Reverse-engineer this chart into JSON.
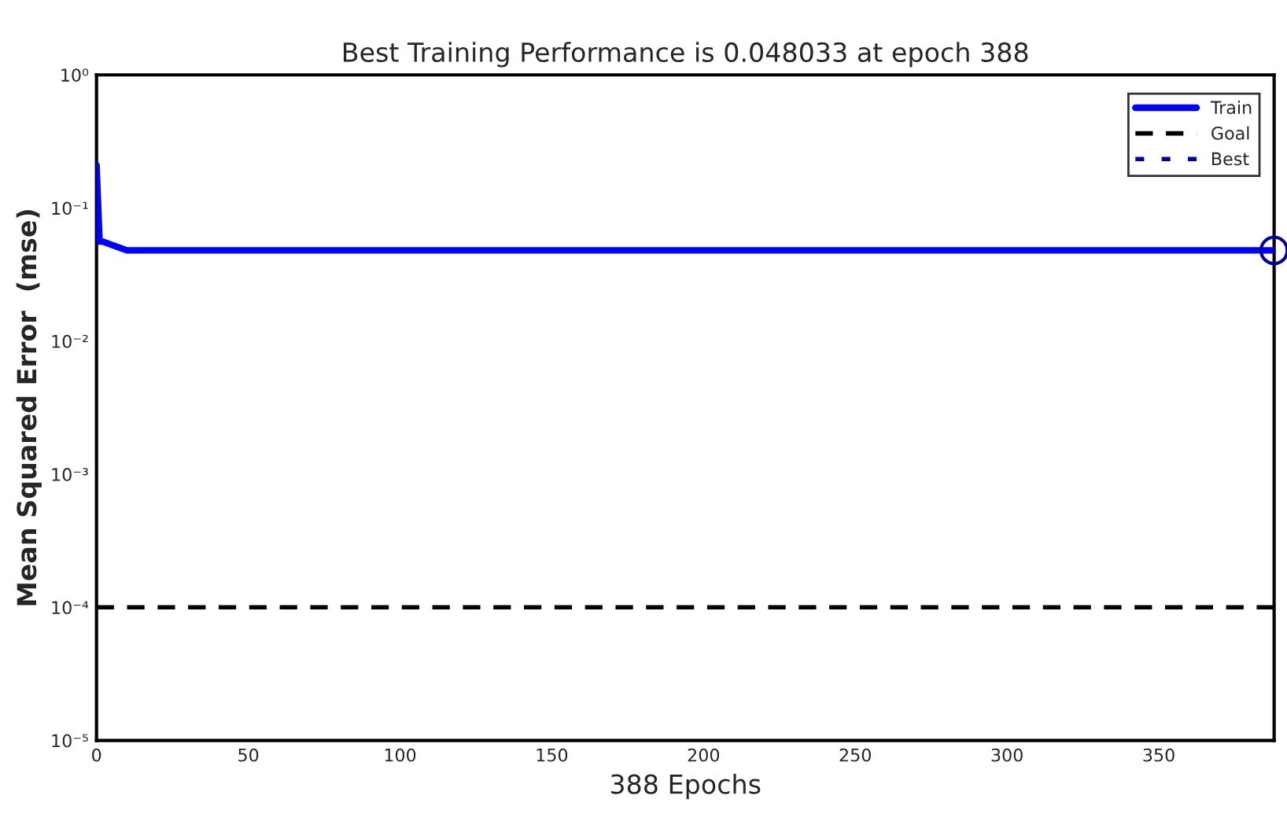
{
  "chart_data": {
    "type": "line",
    "title": "Best Training Performance is 0.048033 at epoch 388",
    "xlabel": "388 Epochs",
    "ylabel": "Mean Squared Error  (mse)",
    "series": [
      {
        "name": "Train",
        "color": "#0000ff",
        "x": [
          0,
          1,
          2,
          10,
          388
        ],
        "values": [
          0.21,
          0.056,
          0.056,
          0.048033,
          0.048033
        ],
        "line_style": "solid"
      },
      {
        "name": "Goal",
        "color": "#000000",
        "x": [
          0,
          388
        ],
        "values": [
          0.0001,
          0.0001
        ],
        "line_style": "dashed"
      },
      {
        "name": "Best",
        "type": "scatter",
        "color": "#00009c",
        "x": [
          388
        ],
        "values": [
          0.048033
        ],
        "marker": "circle",
        "line_style": "dotted"
      }
    ],
    "log": "y",
    "xlim": [
      0,
      388
    ],
    "ylim": [
      1e-05,
      1
    ],
    "xticks": [
      0,
      50,
      100,
      150,
      200,
      250,
      300,
      350
    ],
    "yticks": [
      {
        "value": 1e-05,
        "label": "10⁻⁵"
      },
      {
        "value": 0.0001,
        "label": "10⁻⁴"
      },
      {
        "value": 0.001,
        "label": "10⁻³"
      },
      {
        "value": 0.01,
        "label": "10⁻²"
      },
      {
        "value": 0.1,
        "label": "10⁻¹"
      },
      {
        "value": 1,
        "label": "10⁰"
      }
    ],
    "grid": false,
    "legend": "top right"
  }
}
